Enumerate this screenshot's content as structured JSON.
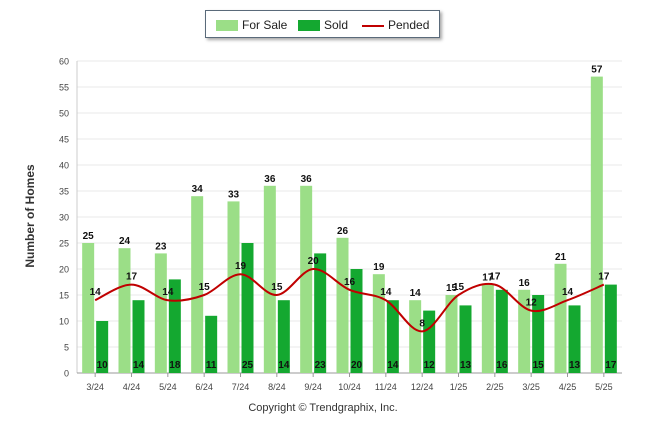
{
  "legend": {
    "for_sale": "For Sale",
    "sold": "Sold",
    "pended": "Pended"
  },
  "footer": "Copyright © Trendgraphix, Inc.",
  "colors": {
    "for_sale": "#9bde87",
    "sold": "#14a830",
    "pended": "#c00000",
    "grid": "#e8e8e8"
  },
  "chart_data": {
    "type": "bar",
    "title": "",
    "xlabel": "",
    "ylabel": "Number of Homes",
    "ylim": [
      0,
      60
    ],
    "yticks": [
      0,
      5,
      10,
      15,
      20,
      25,
      30,
      35,
      40,
      45,
      50,
      55,
      60
    ],
    "grid": true,
    "legend_position": "top-center",
    "categories": [
      "3/24",
      "4/24",
      "5/24",
      "6/24",
      "7/24",
      "8/24",
      "9/24",
      "10/24",
      "11/24",
      "12/24",
      "1/25",
      "2/25",
      "3/25",
      "4/25",
      "5/25"
    ],
    "series": [
      {
        "name": "For Sale",
        "type": "bar",
        "values": [
          25,
          24,
          23,
          34,
          33,
          36,
          36,
          26,
          19,
          14,
          15,
          17,
          16,
          21,
          57
        ]
      },
      {
        "name": "Sold",
        "type": "bar",
        "values": [
          10,
          14,
          18,
          11,
          25,
          14,
          23,
          20,
          14,
          12,
          13,
          16,
          15,
          13,
          17
        ]
      },
      {
        "name": "Pended",
        "type": "line",
        "values": [
          14,
          17,
          14,
          15,
          19,
          15,
          20,
          16,
          14,
          8,
          15,
          17,
          12,
          14,
          17
        ]
      }
    ]
  }
}
